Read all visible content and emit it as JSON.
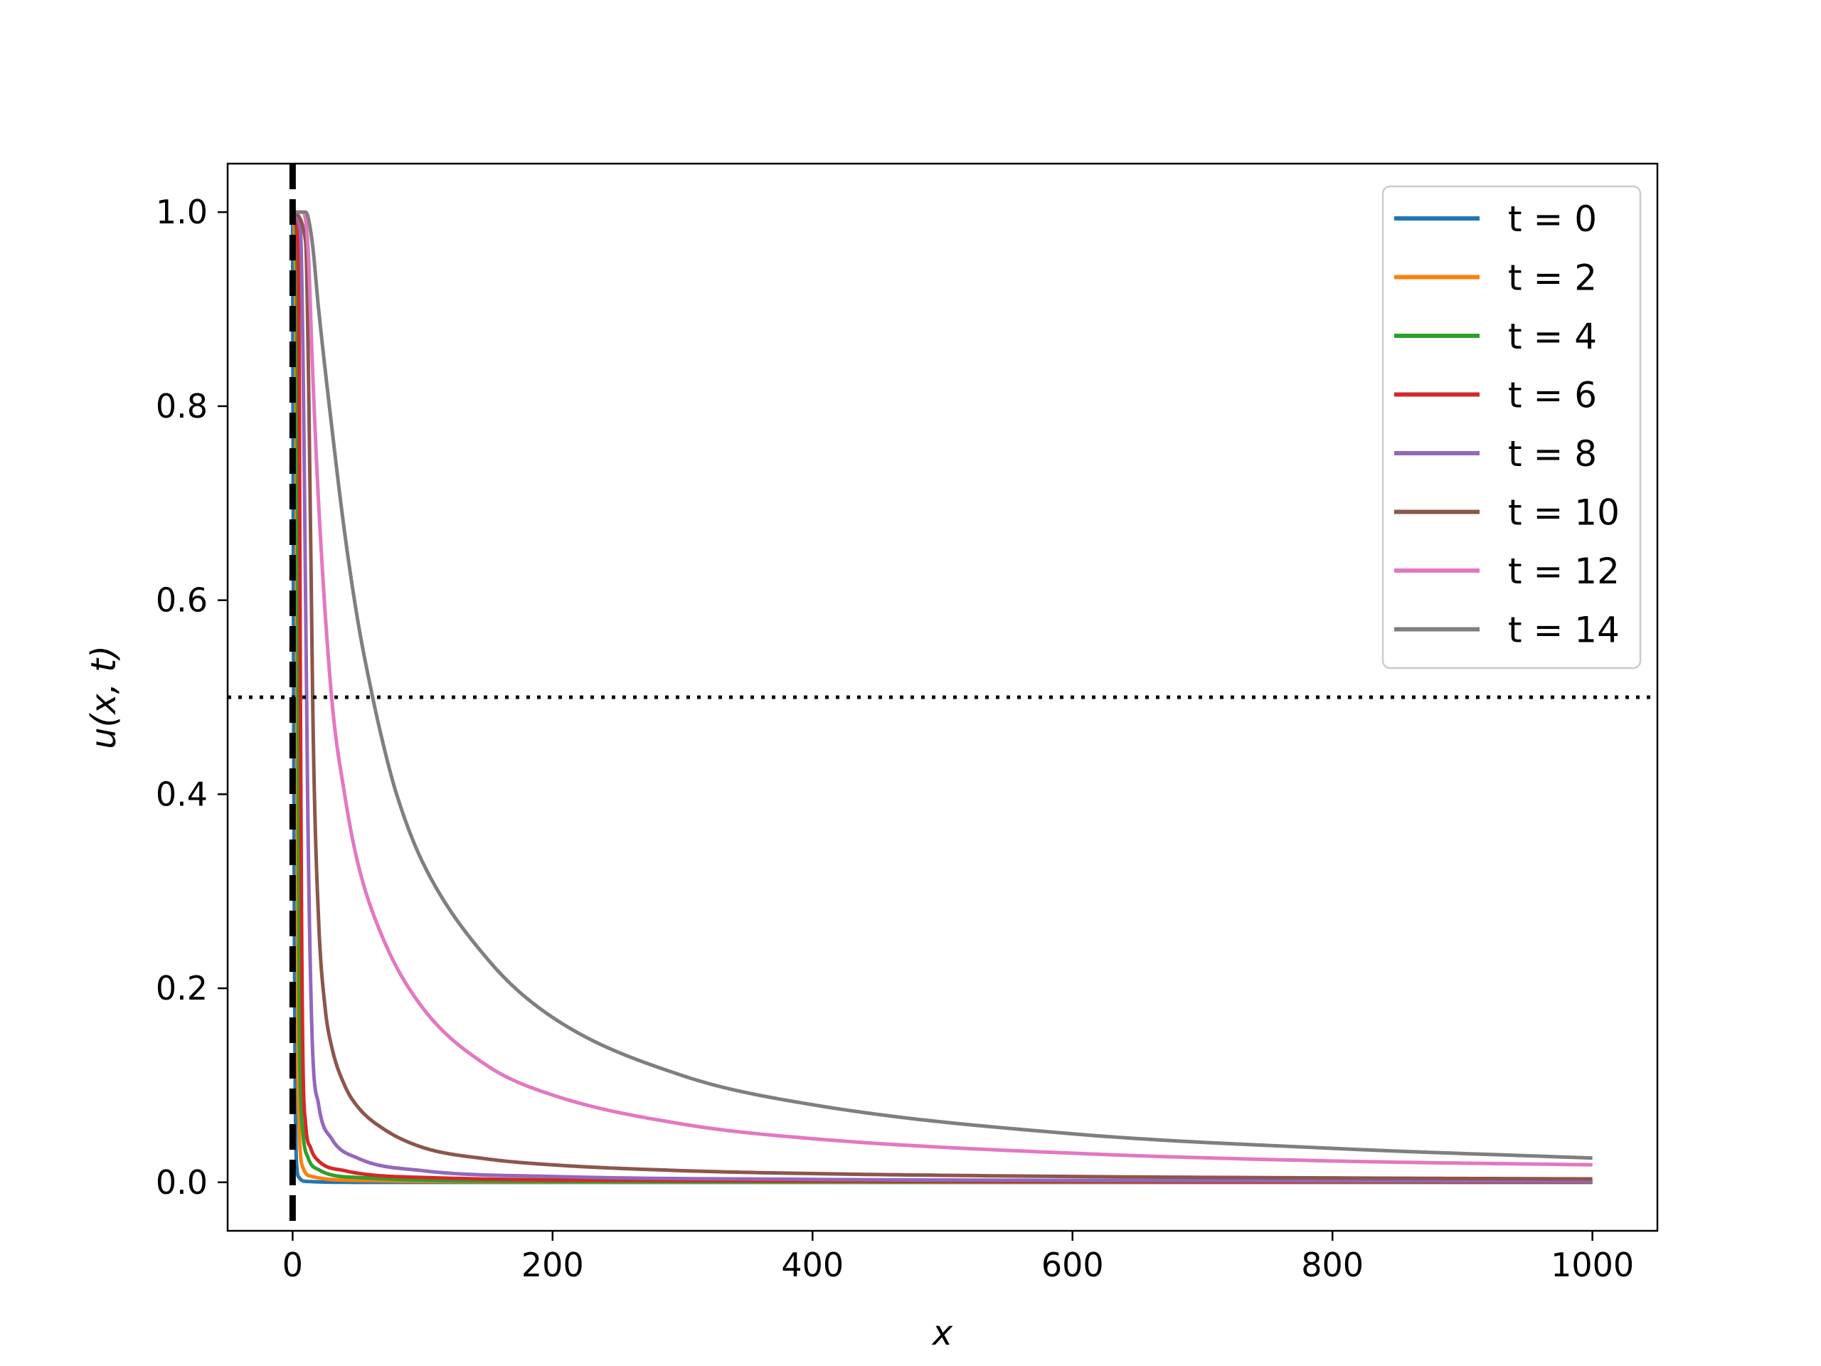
{
  "chart_data": {
    "type": "line",
    "title": "",
    "xlabel": "x",
    "ylabel": "u(x, t)",
    "xlim": [
      -50,
      1050
    ],
    "ylim": [
      -0.05,
      1.05
    ],
    "xticks": [
      0,
      200,
      400,
      600,
      800,
      1000
    ],
    "xtick_labels": [
      "0",
      "200",
      "400",
      "600",
      "800",
      "1000"
    ],
    "yticks": [
      0.0,
      0.2,
      0.4,
      0.6,
      0.8,
      1.0
    ],
    "ytick_labels": [
      "0.0",
      "0.2",
      "0.4",
      "0.6",
      "0.8",
      "1.0"
    ],
    "grid": false,
    "legend_position": "top-right",
    "reference_lines": [
      {
        "orientation": "vertical",
        "x": 0,
        "style": "dashed",
        "color": "#000000"
      },
      {
        "orientation": "horizontal",
        "y": 0.5,
        "style": "dotted",
        "color": "#000000"
      }
    ],
    "series": [
      {
        "name": "t = 0",
        "color": "#1f77b4",
        "x": [
          0,
          1,
          2,
          3,
          5,
          10,
          50,
          200,
          600,
          1000
        ],
        "y": [
          1.0,
          0.4,
          0.1,
          0.02,
          0.005,
          0.001,
          0.0,
          0.0,
          0.0,
          0.0
        ]
      },
      {
        "name": "t = 2",
        "color": "#ff7f0e",
        "x": [
          0,
          2,
          3,
          4,
          5,
          6,
          8,
          15,
          50,
          200,
          600,
          1000
        ],
        "y": [
          1.0,
          0.95,
          0.6,
          0.15,
          0.06,
          0.03,
          0.015,
          0.006,
          0.002,
          0.0005,
          0.0002,
          0.0001
        ]
      },
      {
        "name": "t = 4",
        "color": "#2ca02c",
        "x": [
          0,
          3,
          4,
          5,
          6,
          8,
          12,
          20,
          50,
          200,
          600,
          1000
        ],
        "y": [
          1.0,
          0.97,
          0.6,
          0.2,
          0.1,
          0.05,
          0.025,
          0.013,
          0.005,
          0.001,
          0.0004,
          0.0002
        ]
      },
      {
        "name": "t = 6",
        "color": "#d62728",
        "x": [
          0,
          4,
          5,
          6,
          7,
          8,
          10,
          14,
          20,
          40,
          100,
          300,
          600,
          1000
        ],
        "y": [
          1.0,
          0.97,
          0.85,
          0.5,
          0.25,
          0.12,
          0.06,
          0.035,
          0.022,
          0.012,
          0.005,
          0.002,
          0.0008,
          0.0005
        ]
      },
      {
        "name": "t = 8",
        "color": "#9467bd",
        "x": [
          0,
          6,
          8,
          10,
          12,
          15,
          20,
          30,
          50,
          100,
          200,
          400,
          600,
          800,
          1000
        ],
        "y": [
          1.0,
          0.98,
          0.85,
          0.6,
          0.35,
          0.15,
          0.08,
          0.045,
          0.025,
          0.012,
          0.006,
          0.003,
          0.002,
          0.0015,
          0.001
        ]
      },
      {
        "name": "t = 10",
        "color": "#8c564b",
        "x": [
          0,
          10,
          12,
          14,
          16,
          20,
          25,
          30,
          40,
          50,
          70,
          100,
          150,
          200,
          300,
          400,
          600,
          800,
          1000
        ],
        "y": [
          1.0,
          0.97,
          0.85,
          0.65,
          0.45,
          0.27,
          0.18,
          0.14,
          0.1,
          0.078,
          0.055,
          0.036,
          0.024,
          0.018,
          0.012,
          0.009,
          0.006,
          0.0045,
          0.0035
        ]
      },
      {
        "name": "t = 12",
        "color": "#e377c2",
        "x": [
          0,
          8,
          12,
          15,
          20,
          30,
          40,
          50,
          70,
          100,
          150,
          200,
          300,
          400,
          600,
          800,
          1000
        ],
        "y": [
          1.0,
          1.0,
          0.96,
          0.85,
          0.7,
          0.5,
          0.4,
          0.33,
          0.25,
          0.18,
          0.12,
          0.09,
          0.06,
          0.045,
          0.03,
          0.022,
          0.018
        ]
      },
      {
        "name": "t = 14",
        "color": "#7f7f7f",
        "x": [
          0,
          10,
          15,
          20,
          30,
          40,
          50,
          60,
          70,
          80,
          100,
          150,
          200,
          300,
          400,
          600,
          800,
          1000
        ],
        "y": [
          1.0,
          1.0,
          0.97,
          0.9,
          0.78,
          0.67,
          0.58,
          0.51,
          0.45,
          0.4,
          0.33,
          0.23,
          0.17,
          0.11,
          0.08,
          0.05,
          0.035,
          0.025
        ]
      }
    ]
  }
}
